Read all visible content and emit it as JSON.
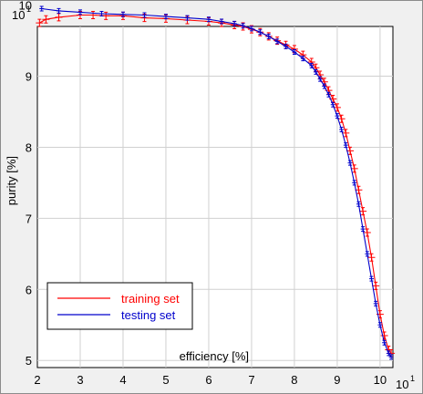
{
  "chart_data": {
    "type": "line",
    "xlabel": "efficiency [%]",
    "ylabel": "purity [%]",
    "x_exponent_label": "10",
    "x_exponent_power": "1",
    "y_exponent_label": "10",
    "y_exponent_power": "1",
    "xlim": [
      20,
      103
    ],
    "ylim": [
      49,
      97
    ],
    "x_ticks": [
      {
        "value": 20,
        "label": "2"
      },
      {
        "value": 30,
        "label": "3"
      },
      {
        "value": 40,
        "label": "4"
      },
      {
        "value": 50,
        "label": "5"
      },
      {
        "value": 60,
        "label": "6"
      },
      {
        "value": 70,
        "label": "7"
      },
      {
        "value": 80,
        "label": "8"
      },
      {
        "value": 90,
        "label": "9"
      },
      {
        "value": 100,
        "label": "10"
      }
    ],
    "y_ticks": [
      {
        "value": 50,
        "label": "5"
      },
      {
        "value": 60,
        "label": "6"
      },
      {
        "value": 70,
        "label": "7"
      },
      {
        "value": 80,
        "label": "8"
      },
      {
        "value": 90,
        "label": "9"
      },
      {
        "value": 100,
        "label": "10"
      }
    ],
    "grid": true,
    "legend_position": "bottom-left",
    "series": [
      {
        "name": "training set",
        "color": "#ff0000",
        "x": [
          20.5,
          22,
          25,
          30,
          33,
          36,
          40,
          45,
          50,
          55,
          60,
          63,
          66,
          68,
          70,
          72,
          74,
          76,
          78,
          80,
          82,
          84,
          85,
          86,
          87,
          88,
          89,
          90,
          91,
          92,
          93,
          94,
          95,
          96,
          97,
          98,
          99,
          100,
          101,
          102,
          102.6
        ],
        "y": [
          97.5,
          98.0,
          98.3,
          98.6,
          98.6,
          98.5,
          98.5,
          98.2,
          98.1,
          97.9,
          97.7,
          97.5,
          97.2,
          97.0,
          96.6,
          96.2,
          95.6,
          95.0,
          94.4,
          93.8,
          93.0,
          92.0,
          91.2,
          90.2,
          89.2,
          88.0,
          86.8,
          85.6,
          84.0,
          82.0,
          79.5,
          77.0,
          74.0,
          71.0,
          68.0,
          64.5,
          60.5,
          56.5,
          53.5,
          51.5,
          51.0
        ]
      },
      {
        "name": "testing set",
        "color": "#0000cc",
        "x": [
          21,
          25,
          30,
          35,
          40,
          45,
          50,
          55,
          60,
          63,
          66,
          68,
          70,
          72,
          74,
          76,
          78,
          80,
          82,
          84,
          85,
          86,
          87,
          88,
          89,
          90,
          91,
          92,
          93,
          94,
          95,
          96,
          97,
          98,
          99,
          100,
          101,
          102,
          102.6
        ],
        "y": [
          99.5,
          99.2,
          99.0,
          98.8,
          98.7,
          98.6,
          98.4,
          98.2,
          98.0,
          97.7,
          97.4,
          97.1,
          96.7,
          96.2,
          95.6,
          94.9,
          94.2,
          93.4,
          92.5,
          91.5,
          90.6,
          89.6,
          88.6,
          87.4,
          86.0,
          84.4,
          82.5,
          80.3,
          77.8,
          75.0,
          72.0,
          68.5,
          65.0,
          61.5,
          58.0,
          55.0,
          52.5,
          51.0,
          50.5
        ]
      }
    ]
  }
}
